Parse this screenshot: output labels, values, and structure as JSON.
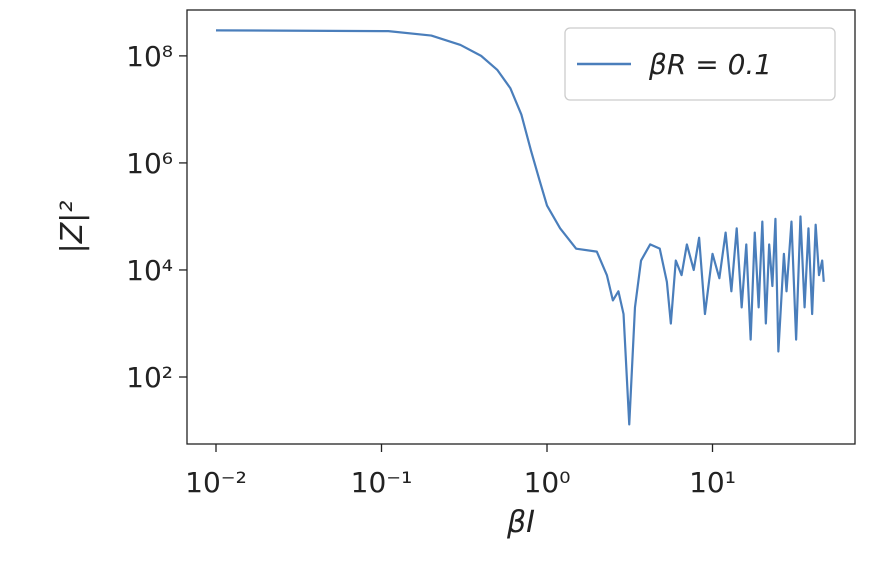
{
  "chart_data": {
    "type": "line",
    "xlabel": "βI",
    "ylabel": "|Z|²",
    "xscale": "log",
    "yscale": "log",
    "xlim": [
      0.00668,
      72.6
    ],
    "ylim": [
      5.6,
      720000000
    ],
    "xticks": [
      {
        "value": 0.01,
        "label": "10⁻²"
      },
      {
        "value": 0.1,
        "label": "10⁻¹"
      },
      {
        "value": 1,
        "label": "10⁰"
      },
      {
        "value": 10,
        "label": "10¹"
      }
    ],
    "yticks": [
      {
        "value": 100,
        "label": "10²"
      },
      {
        "value": 10000,
        "label": "10⁴"
      },
      {
        "value": 1000000,
        "label": "10⁶"
      },
      {
        "value": 100000000,
        "label": "10⁸"
      }
    ],
    "grid": false,
    "legend": "upper right",
    "x": [
      0.01,
      0.11,
      0.2,
      0.3,
      0.4,
      0.5,
      0.6,
      0.7,
      0.8,
      0.9,
      1.0,
      1.2,
      1.5,
      2.0,
      2.3,
      2.5,
      2.7,
      2.9,
      3.14,
      3.4,
      3.7,
      4.2,
      4.8,
      5.3,
      5.6,
      6.0,
      6.5,
      7.0,
      7.7,
      8.3,
      9,
      10,
      11,
      12,
      13,
      14,
      15,
      16,
      17,
      18,
      19,
      20,
      21,
      22,
      23,
      24,
      25,
      27,
      28,
      30,
      32,
      34,
      36,
      38,
      40,
      42,
      44,
      46,
      47
    ],
    "series": [
      {
        "name": "βR = 0.1",
        "color": "#4a7ebb",
        "values": [
          300000000,
          290000000,
          240000000,
          160000000,
          100000000,
          55000000,
          25000000,
          8000000,
          1700000,
          480000,
          160000,
          60000,
          25000,
          22000,
          8000,
          2700,
          4000,
          1500,
          13,
          2000,
          15000,
          30000,
          25000,
          6000,
          1000,
          15000,
          8000,
          30000,
          10000,
          40000,
          1500,
          20000,
          7000,
          50000,
          4000,
          60000,
          2000,
          30000,
          500,
          50000,
          2000,
          80000,
          1000,
          30000,
          5000,
          90000,
          300,
          20000,
          4000,
          80000,
          500,
          100000,
          2000,
          60000,
          1500,
          70000,
          8000,
          15000,
          6000
        ]
      }
    ]
  }
}
